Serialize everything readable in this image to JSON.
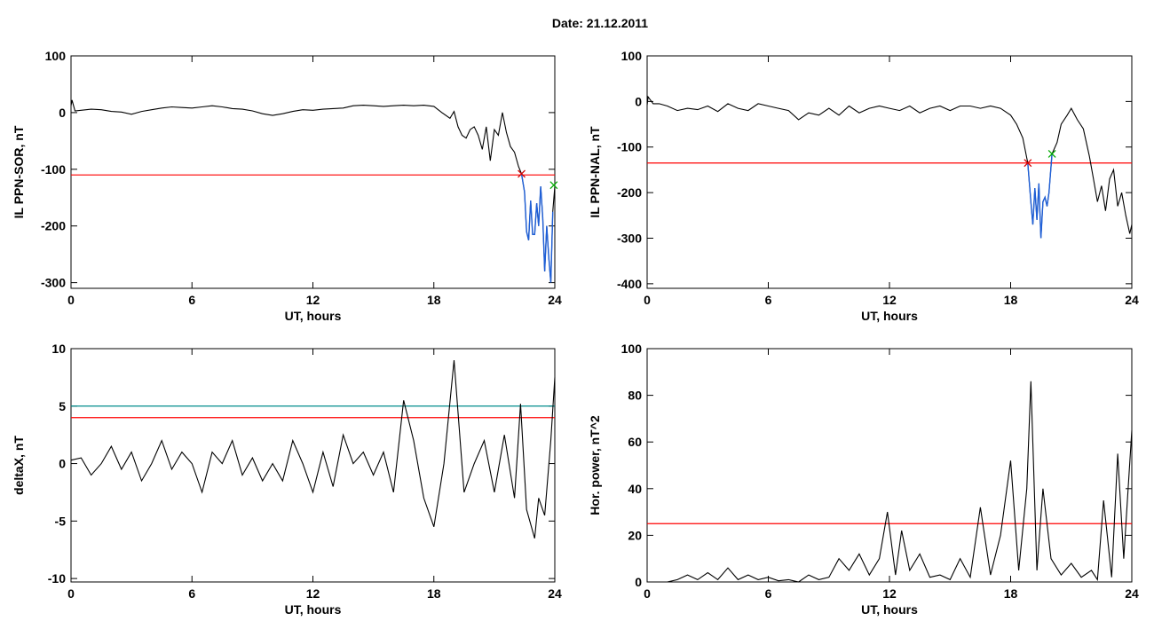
{
  "header": {
    "date_label": "Date:  21.12.2011"
  },
  "colors": {
    "threshold": "#ff0000",
    "threshold2": "#008b8b",
    "event": "#1e5fd8",
    "marker_start": "#d00000",
    "marker_end": "#00aa00",
    "trace": "#000000"
  },
  "chart_data": [
    {
      "type": "line",
      "name": "panel-ppn-sor",
      "xlabel": "UT, hours",
      "ylabel": "IL PPN-SOR, nT",
      "xlim": [
        0,
        24
      ],
      "ylim": [
        -310,
        100
      ],
      "xticks": [
        0,
        6,
        12,
        18,
        24
      ],
      "yticks": [
        -300,
        -200,
        -100,
        0,
        100
      ],
      "grid": false,
      "thresholds": [
        {
          "value": -110,
          "color": "#ff0000"
        }
      ],
      "markers": [
        {
          "x": 22.35,
          "y": -108,
          "symbol": "x",
          "color": "#d00000"
        },
        {
          "x": 23.95,
          "y": -128,
          "symbol": "x",
          "color": "#00aa00"
        }
      ],
      "event_segment": [
        22.35,
        23.95
      ],
      "series": [
        {
          "x": [
            0,
            0.05,
            0.2,
            0.5,
            1,
            1.5,
            2,
            2.5,
            3,
            3.5,
            4,
            4.5,
            5,
            5.5,
            6,
            6.5,
            7,
            7.5,
            8,
            8.5,
            9,
            9.5,
            10,
            10.5,
            11,
            11.5,
            12,
            12.5,
            13,
            13.5,
            14,
            14.5,
            15,
            15.5,
            16,
            16.5,
            17,
            17.5,
            18,
            18.4,
            18.8,
            19,
            19.2,
            19.4,
            19.6,
            19.8,
            20,
            20.2,
            20.4,
            20.6,
            20.8,
            21,
            21.2,
            21.4,
            21.6,
            21.8,
            22,
            22.2,
            22.35,
            22.5,
            22.6,
            22.7,
            22.8,
            22.9,
            23.0,
            23.1,
            23.2,
            23.3,
            23.4,
            23.5,
            23.6,
            23.7,
            23.8,
            23.9,
            24
          ],
          "values": [
            12,
            22,
            3,
            4,
            6,
            5,
            2,
            1,
            -3,
            2,
            5,
            8,
            10,
            9,
            8,
            10,
            12,
            10,
            7,
            6,
            3,
            -2,
            -5,
            -2,
            2,
            5,
            4,
            6,
            7,
            8,
            12,
            13,
            12,
            11,
            12,
            13,
            12,
            13,
            11,
            0,
            -10,
            2,
            -25,
            -40,
            -45,
            -30,
            -25,
            -40,
            -65,
            -25,
            -85,
            -30,
            -40,
            0,
            -35,
            -60,
            -70,
            -95,
            -108,
            -140,
            -210,
            -225,
            -155,
            -215,
            -215,
            -160,
            -200,
            -130,
            -185,
            -280,
            -200,
            -255,
            -300,
            -175,
            -130
          ]
        }
      ]
    },
    {
      "type": "line",
      "name": "panel-ppn-nal",
      "xlabel": "UT, hours",
      "ylabel": "IL PPN-NAL, nT",
      "xlim": [
        0,
        24
      ],
      "ylim": [
        -410,
        100
      ],
      "xticks": [
        0,
        6,
        12,
        18,
        24
      ],
      "yticks": [
        -400,
        -300,
        -200,
        -100,
        0,
        100
      ],
      "grid": false,
      "thresholds": [
        {
          "value": -135,
          "color": "#ff0000"
        }
      ],
      "markers": [
        {
          "x": 18.85,
          "y": -135,
          "symbol": "x",
          "color": "#d00000"
        },
        {
          "x": 20.05,
          "y": -115,
          "symbol": "x",
          "color": "#00aa00"
        }
      ],
      "event_segment": [
        18.85,
        20.05
      ],
      "series": [
        {
          "x": [
            0,
            0.05,
            0.3,
            0.6,
            1,
            1.5,
            2,
            2.5,
            3,
            3.5,
            4,
            4.5,
            5,
            5.5,
            6,
            6.5,
            7,
            7.5,
            8,
            8.5,
            9,
            9.5,
            10,
            10.5,
            11,
            11.5,
            12,
            12.5,
            13,
            13.5,
            14,
            14.5,
            15,
            15.5,
            16,
            16.5,
            17,
            17.5,
            18,
            18.3,
            18.6,
            18.85,
            19.0,
            19.1,
            19.2,
            19.3,
            19.4,
            19.5,
            19.6,
            19.7,
            19.8,
            19.9,
            20.05,
            20.3,
            20.5,
            20.8,
            21.0,
            21.3,
            21.6,
            21.9,
            22.1,
            22.3,
            22.5,
            22.7,
            22.9,
            23.1,
            23.3,
            23.5,
            23.7,
            23.9,
            24
          ],
          "values": [
            -8,
            10,
            -5,
            -5,
            -10,
            -20,
            -15,
            -18,
            -10,
            -22,
            -5,
            -15,
            -20,
            -5,
            -10,
            -15,
            -20,
            -40,
            -25,
            -30,
            -15,
            -30,
            -10,
            -25,
            -15,
            -10,
            -15,
            -20,
            -10,
            -25,
            -15,
            -10,
            -20,
            -10,
            -10,
            -15,
            -10,
            -15,
            -30,
            -50,
            -80,
            -135,
            -220,
            -270,
            -190,
            -260,
            -180,
            -300,
            -220,
            -210,
            -230,
            -200,
            -115,
            -90,
            -50,
            -30,
            -15,
            -40,
            -60,
            -120,
            -170,
            -220,
            -185,
            -240,
            -170,
            -150,
            -230,
            -200,
            -250,
            -290,
            -270
          ]
        }
      ]
    },
    {
      "type": "line",
      "name": "panel-deltax",
      "xlabel": "UT, hours",
      "ylabel": "deltaX, nT",
      "xlim": [
        0,
        24
      ],
      "ylim": [
        -10.3,
        10
      ],
      "xticks": [
        0,
        6,
        12,
        18,
        24
      ],
      "yticks": [
        -10,
        -5,
        0,
        5,
        10
      ],
      "grid": false,
      "thresholds": [
        {
          "value": 5,
          "color": "#008b8b"
        },
        {
          "value": 4,
          "color": "#ff0000"
        }
      ],
      "series": [
        {
          "x": [
            0,
            0.5,
            1,
            1.5,
            2,
            2.5,
            3,
            3.5,
            4,
            4.5,
            5,
            5.5,
            6,
            6.5,
            7,
            7.5,
            8,
            8.5,
            9,
            9.5,
            10,
            10.5,
            11,
            11.5,
            12,
            12.5,
            13,
            13.5,
            14,
            14.5,
            15,
            15.5,
            16,
            16.5,
            17,
            17.5,
            18,
            18.5,
            19,
            19.5,
            20,
            20.5,
            21,
            21.5,
            22,
            22.3,
            22.6,
            23,
            23.2,
            23.5,
            23.8,
            24
          ],
          "values": [
            0.3,
            0.5,
            -1,
            0,
            1.5,
            -0.5,
            1,
            -1.5,
            0,
            2,
            -0.5,
            1,
            0,
            -2.5,
            1,
            0,
            2,
            -1,
            0.5,
            -1.5,
            0,
            -1.5,
            2,
            0,
            -2.5,
            1,
            -2,
            2.5,
            0,
            1,
            -1,
            1,
            -2.5,
            5.5,
            2,
            -3,
            -5.5,
            0,
            9,
            -2.5,
            0,
            2,
            -2.5,
            2.5,
            -3,
            5.2,
            -4,
            -6.5,
            -3,
            -4.5,
            2,
            7.5
          ]
        }
      ]
    },
    {
      "type": "line",
      "name": "panel-hor-power",
      "xlabel": "UT, hours",
      "ylabel": "Hor. power, nT^2",
      "xlim": [
        0,
        24
      ],
      "ylim": [
        0,
        100
      ],
      "xticks": [
        0,
        6,
        12,
        18,
        24
      ],
      "yticks": [
        0,
        20,
        40,
        60,
        80,
        100
      ],
      "grid": false,
      "thresholds": [
        {
          "value": 25,
          "color": "#ff0000"
        }
      ],
      "series": [
        {
          "x": [
            0,
            0.5,
            1,
            1.5,
            2,
            2.5,
            3,
            3.5,
            4,
            4.5,
            5,
            5.5,
            6,
            6.5,
            7,
            7.5,
            8,
            8.5,
            9,
            9.5,
            10,
            10.5,
            11,
            11.5,
            11.9,
            12.3,
            12.6,
            13,
            13.5,
            14,
            14.5,
            15,
            15.5,
            16,
            16.5,
            17,
            17.5,
            18,
            18.4,
            18.8,
            19.0,
            19.3,
            19.6,
            20,
            20.5,
            21,
            21.5,
            22,
            22.3,
            22.6,
            23,
            23.3,
            23.6,
            24
          ],
          "values": [
            0,
            0,
            0,
            1,
            3,
            1,
            4,
            1,
            6,
            1,
            3,
            1,
            2,
            0.5,
            1,
            0,
            3,
            1,
            2,
            10,
            5,
            12,
            3,
            10,
            30,
            3,
            22,
            5,
            12,
            2,
            3,
            1,
            10,
            2,
            32,
            3,
            20,
            52,
            5,
            40,
            86,
            5,
            40,
            10,
            3,
            8,
            2,
            5,
            1,
            35,
            2,
            55,
            10,
            65
          ]
        }
      ]
    }
  ]
}
